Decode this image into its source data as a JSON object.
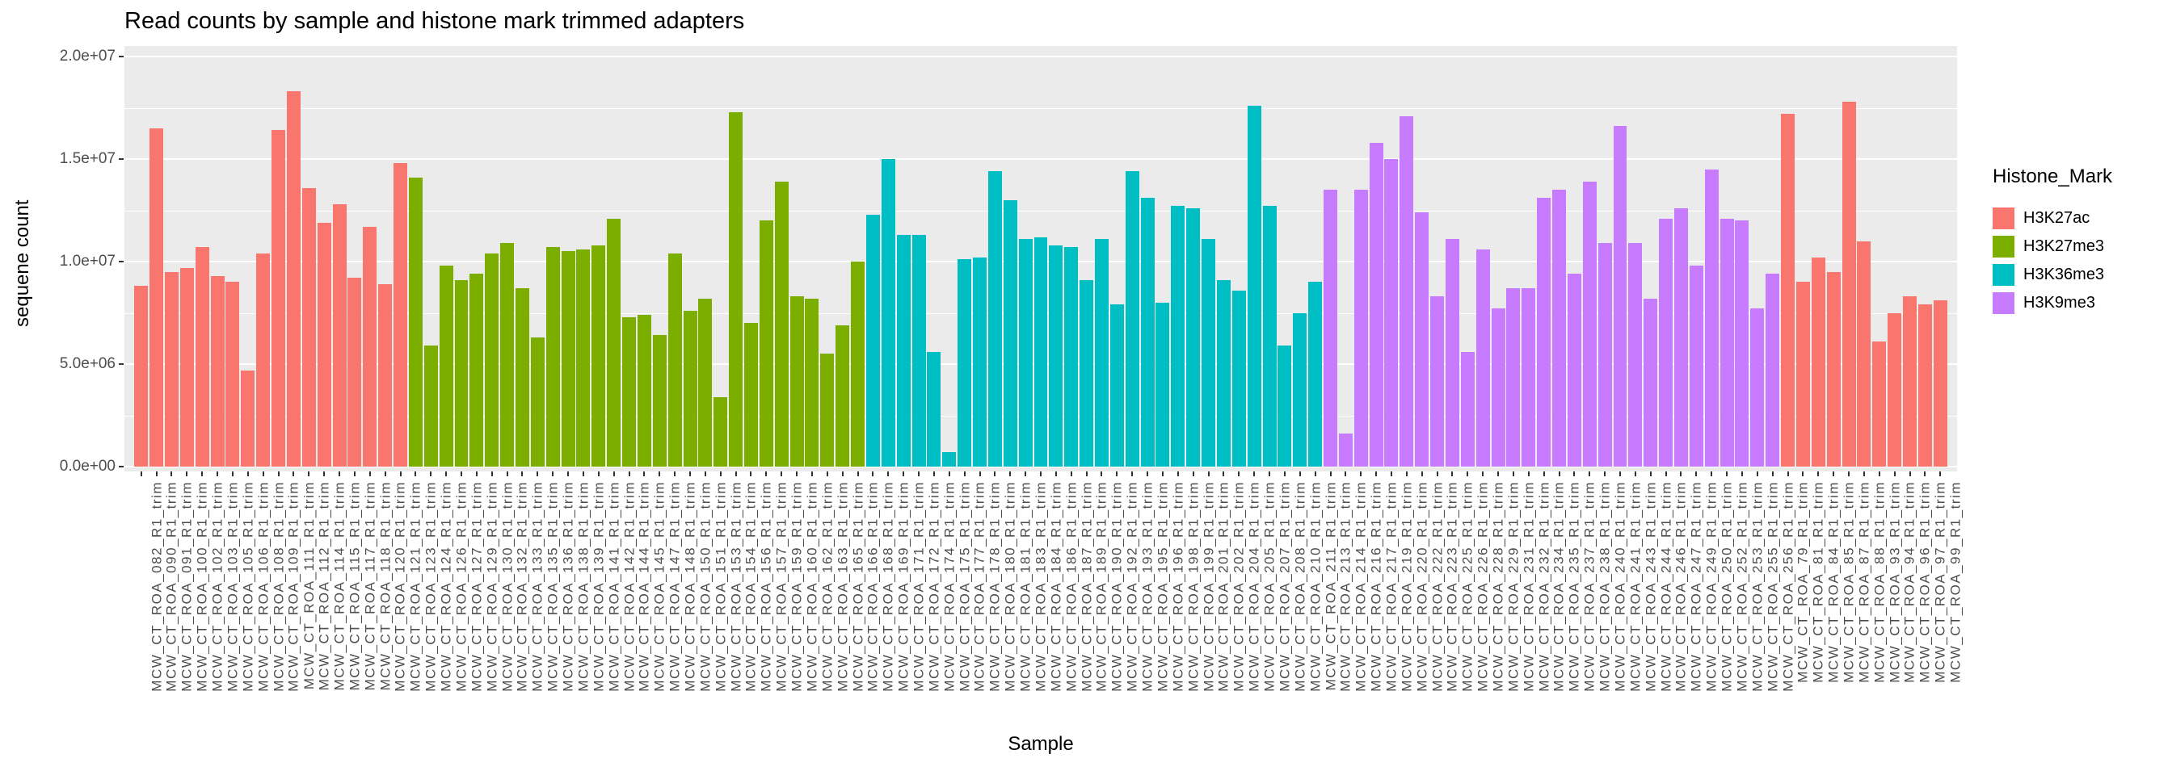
{
  "chart_data": {
    "type": "bar",
    "title": "Read counts by sample and histone mark trimmed adapters",
    "xlabel": "Sample",
    "ylabel": "sequene count",
    "ylim": [
      0,
      20000000
    ],
    "grid": true,
    "panel_bg": "#EBEBEB",
    "yticks": {
      "values": [
        0,
        5000000,
        10000000,
        15000000,
        20000000
      ],
      "labels": [
        "0.0e+00",
        "5.0e+06",
        "1.0e+07",
        "1.5e+07",
        "2.0e+07"
      ],
      "minor": [
        2500000,
        7500000,
        12500000,
        17500000
      ]
    },
    "legend": {
      "title": "Histone_Mark",
      "position": "right",
      "entries": [
        {
          "label": "H3K27ac",
          "color": "#F8766D"
        },
        {
          "label": "H3K27me3",
          "color": "#7CAE00"
        },
        {
          "label": "H3K36me3",
          "color": "#00BFC4"
        },
        {
          "label": "H3K9me3",
          "color": "#C77CFF"
        }
      ]
    },
    "bars": [
      {
        "sample": "MCW_CT_ROA_082_R1_trim",
        "mark": "H3K27ac",
        "value": 8800000
      },
      {
        "sample": "MCW_CT_ROA_090_R1_trim",
        "mark": "H3K27ac",
        "value": 16500000
      },
      {
        "sample": "MCW_CT_ROA_091_R1_trim",
        "mark": "H3K27ac",
        "value": 9500000
      },
      {
        "sample": "MCW_CT_ROA_100_R1_trim",
        "mark": "H3K27ac",
        "value": 9700000
      },
      {
        "sample": "MCW_CT_ROA_102_R1_trim",
        "mark": "H3K27ac",
        "value": 10700000
      },
      {
        "sample": "MCW_CT_ROA_103_R1_trim",
        "mark": "H3K27ac",
        "value": 9300000
      },
      {
        "sample": "MCW_CT_ROA_105_R1_trim",
        "mark": "H3K27ac",
        "value": 9000000
      },
      {
        "sample": "MCW_CT_ROA_106_R1_trim",
        "mark": "H3K27ac",
        "value": 4700000
      },
      {
        "sample": "MCW_CT_ROA_108_R1_trim",
        "mark": "H3K27ac",
        "value": 10400000
      },
      {
        "sample": "MCW_CT_ROA_109_R1_trim",
        "mark": "H3K27ac",
        "value": 16400000
      },
      {
        "sample": "MCW_CT_ROA_111_R1_trim",
        "mark": "H3K27ac",
        "value": 18300000
      },
      {
        "sample": "MCW_CT_ROA_112_R1_trim",
        "mark": "H3K27ac",
        "value": 13600000
      },
      {
        "sample": "MCW_CT_ROA_114_R1_trim",
        "mark": "H3K27ac",
        "value": 11900000
      },
      {
        "sample": "MCW_CT_ROA_115_R1_trim",
        "mark": "H3K27ac",
        "value": 12800000
      },
      {
        "sample": "MCW_CT_ROA_117_R1_trim",
        "mark": "H3K27ac",
        "value": 9200000
      },
      {
        "sample": "MCW_CT_ROA_118_R1_trim",
        "mark": "H3K27ac",
        "value": 11700000
      },
      {
        "sample": "MCW_CT_ROA_120_R1_trim",
        "mark": "H3K27ac",
        "value": 8900000
      },
      {
        "sample": "MCW_CT_ROA_121_R1_trim",
        "mark": "H3K27ac",
        "value": 14800000
      },
      {
        "sample": "MCW_CT_ROA_123_R1_trim",
        "mark": "H3K27me3",
        "value": 14100000
      },
      {
        "sample": "MCW_CT_ROA_124_R1_trim",
        "mark": "H3K27me3",
        "value": 5900000
      },
      {
        "sample": "MCW_CT_ROA_126_R1_trim",
        "mark": "H3K27me3",
        "value": 9800000
      },
      {
        "sample": "MCW_CT_ROA_127_R1_trim",
        "mark": "H3K27me3",
        "value": 9100000
      },
      {
        "sample": "MCW_CT_ROA_129_R1_trim",
        "mark": "H3K27me3",
        "value": 9400000
      },
      {
        "sample": "MCW_CT_ROA_130_R1_trim",
        "mark": "H3K27me3",
        "value": 10400000
      },
      {
        "sample": "MCW_CT_ROA_132_R1_trim",
        "mark": "H3K27me3",
        "value": 10900000
      },
      {
        "sample": "MCW_CT_ROA_133_R1_trim",
        "mark": "H3K27me3",
        "value": 8700000
      },
      {
        "sample": "MCW_CT_ROA_135_R1_trim",
        "mark": "H3K27me3",
        "value": 6300000
      },
      {
        "sample": "MCW_CT_ROA_136_R1_trim",
        "mark": "H3K27me3",
        "value": 10700000
      },
      {
        "sample": "MCW_CT_ROA_138_R1_trim",
        "mark": "H3K27me3",
        "value": 10500000
      },
      {
        "sample": "MCW_CT_ROA_139_R1_trim",
        "mark": "H3K27me3",
        "value": 10600000
      },
      {
        "sample": "MCW_CT_ROA_141_R1_trim",
        "mark": "H3K27me3",
        "value": 10800000
      },
      {
        "sample": "MCW_CT_ROA_142_R1_trim",
        "mark": "H3K27me3",
        "value": 12100000
      },
      {
        "sample": "MCW_CT_ROA_144_R1_trim",
        "mark": "H3K27me3",
        "value": 7300000
      },
      {
        "sample": "MCW_CT_ROA_145_R1_trim",
        "mark": "H3K27me3",
        "value": 7400000
      },
      {
        "sample": "MCW_CT_ROA_147_R1_trim",
        "mark": "H3K27me3",
        "value": 6400000
      },
      {
        "sample": "MCW_CT_ROA_148_R1_trim",
        "mark": "H3K27me3",
        "value": 10400000
      },
      {
        "sample": "MCW_CT_ROA_150_R1_trim",
        "mark": "H3K27me3",
        "value": 7600000
      },
      {
        "sample": "MCW_CT_ROA_151_R1_trim",
        "mark": "H3K27me3",
        "value": 8200000
      },
      {
        "sample": "MCW_CT_ROA_153_R1_trim",
        "mark": "H3K27me3",
        "value": 3400000
      },
      {
        "sample": "MCW_CT_ROA_154_R1_trim",
        "mark": "H3K27me3",
        "value": 17300000
      },
      {
        "sample": "MCW_CT_ROA_156_R1_trim",
        "mark": "H3K27me3",
        "value": 7000000
      },
      {
        "sample": "MCW_CT_ROA_157_R1_trim",
        "mark": "H3K27me3",
        "value": 12000000
      },
      {
        "sample": "MCW_CT_ROA_159_R1_trim",
        "mark": "H3K27me3",
        "value": 13900000
      },
      {
        "sample": "MCW_CT_ROA_160_R1_trim",
        "mark": "H3K27me3",
        "value": 8300000
      },
      {
        "sample": "MCW_CT_ROA_162_R1_trim",
        "mark": "H3K27me3",
        "value": 8200000
      },
      {
        "sample": "MCW_CT_ROA_163_R1_trim",
        "mark": "H3K27me3",
        "value": 5500000
      },
      {
        "sample": "MCW_CT_ROA_165_R1_trim",
        "mark": "H3K27me3",
        "value": 6900000
      },
      {
        "sample": "MCW_CT_ROA_166_R1_trim",
        "mark": "H3K27me3",
        "value": 10000000
      },
      {
        "sample": "MCW_CT_ROA_168_R1_trim",
        "mark": "H3K36me3",
        "value": 12300000
      },
      {
        "sample": "MCW_CT_ROA_169_R1_trim",
        "mark": "H3K36me3",
        "value": 15000000
      },
      {
        "sample": "MCW_CT_ROA_171_R1_trim",
        "mark": "H3K36me3",
        "value": 11300000
      },
      {
        "sample": "MCW_CT_ROA_172_R1_trim",
        "mark": "H3K36me3",
        "value": 11300000
      },
      {
        "sample": "MCW_CT_ROA_174_R1_trim",
        "mark": "H3K36me3",
        "value": 5600000
      },
      {
        "sample": "MCW_CT_ROA_175_R1_trim",
        "mark": "H3K36me3",
        "value": 700000
      },
      {
        "sample": "MCW_CT_ROA_177_R1_trim",
        "mark": "H3K36me3",
        "value": 10100000
      },
      {
        "sample": "MCW_CT_ROA_178_R1_trim",
        "mark": "H3K36me3",
        "value": 10200000
      },
      {
        "sample": "MCW_CT_ROA_180_R1_trim",
        "mark": "H3K36me3",
        "value": 14400000
      },
      {
        "sample": "MCW_CT_ROA_181_R1_trim",
        "mark": "H3K36me3",
        "value": 13000000
      },
      {
        "sample": "MCW_CT_ROA_183_R1_trim",
        "mark": "H3K36me3",
        "value": 11100000
      },
      {
        "sample": "MCW_CT_ROA_184_R1_trim",
        "mark": "H3K36me3",
        "value": 11200000
      },
      {
        "sample": "MCW_CT_ROA_186_R1_trim",
        "mark": "H3K36me3",
        "value": 10800000
      },
      {
        "sample": "MCW_CT_ROA_187_R1_trim",
        "mark": "H3K36me3",
        "value": 10700000
      },
      {
        "sample": "MCW_CT_ROA_189_R1_trim",
        "mark": "H3K36me3",
        "value": 9100000
      },
      {
        "sample": "MCW_CT_ROA_190_R1_trim",
        "mark": "H3K36me3",
        "value": 11100000
      },
      {
        "sample": "MCW_CT_ROA_192_R1_trim",
        "mark": "H3K36me3",
        "value": 7900000
      },
      {
        "sample": "MCW_CT_ROA_193_R1_trim",
        "mark": "H3K36me3",
        "value": 14400000
      },
      {
        "sample": "MCW_CT_ROA_195_R1_trim",
        "mark": "H3K36me3",
        "value": 13100000
      },
      {
        "sample": "MCW_CT_ROA_196_R1_trim",
        "mark": "H3K36me3",
        "value": 8000000
      },
      {
        "sample": "MCW_CT_ROA_198_R1_trim",
        "mark": "H3K36me3",
        "value": 12700000
      },
      {
        "sample": "MCW_CT_ROA_199_R1_trim",
        "mark": "H3K36me3",
        "value": 12600000
      },
      {
        "sample": "MCW_CT_ROA_201_R1_trim",
        "mark": "H3K36me3",
        "value": 11100000
      },
      {
        "sample": "MCW_CT_ROA_202_R1_trim",
        "mark": "H3K36me3",
        "value": 9100000
      },
      {
        "sample": "MCW_CT_ROA_204_R1_trim",
        "mark": "H3K36me3",
        "value": 8600000
      },
      {
        "sample": "MCW_CT_ROA_205_R1_trim",
        "mark": "H3K36me3",
        "value": 17600000
      },
      {
        "sample": "MCW_CT_ROA_207_R1_trim",
        "mark": "H3K36me3",
        "value": 12700000
      },
      {
        "sample": "MCW_CT_ROA_208_R1_trim",
        "mark": "H3K36me3",
        "value": 5900000
      },
      {
        "sample": "MCW_CT_ROA_210_R1_trim",
        "mark": "H3K36me3",
        "value": 7500000
      },
      {
        "sample": "MCW_CT_ROA_211_R1_trim",
        "mark": "H3K36me3",
        "value": 9000000
      },
      {
        "sample": "MCW_CT_ROA_213_R1_trim",
        "mark": "H3K9me3",
        "value": 13500000
      },
      {
        "sample": "MCW_CT_ROA_214_R1_trim",
        "mark": "H3K9me3",
        "value": 1600000
      },
      {
        "sample": "MCW_CT_ROA_216_R1_trim",
        "mark": "H3K9me3",
        "value": 13500000
      },
      {
        "sample": "MCW_CT_ROA_217_R1_trim",
        "mark": "H3K9me3",
        "value": 15800000
      },
      {
        "sample": "MCW_CT_ROA_219_R1_trim",
        "mark": "H3K9me3",
        "value": 15000000
      },
      {
        "sample": "MCW_CT_ROA_220_R1_trim",
        "mark": "H3K9me3",
        "value": 17100000
      },
      {
        "sample": "MCW_CT_ROA_222_R1_trim",
        "mark": "H3K9me3",
        "value": 12400000
      },
      {
        "sample": "MCW_CT_ROA_223_R1_trim",
        "mark": "H3K9me3",
        "value": 8300000
      },
      {
        "sample": "MCW_CT_ROA_225_R1_trim",
        "mark": "H3K9me3",
        "value": 11100000
      },
      {
        "sample": "MCW_CT_ROA_226_R1_trim",
        "mark": "H3K9me3",
        "value": 5600000
      },
      {
        "sample": "MCW_CT_ROA_228_R1_trim",
        "mark": "H3K9me3",
        "value": 10600000
      },
      {
        "sample": "MCW_CT_ROA_229_R1_trim",
        "mark": "H3K9me3",
        "value": 7700000
      },
      {
        "sample": "MCW_CT_ROA_231_R1_trim",
        "mark": "H3K9me3",
        "value": 8700000
      },
      {
        "sample": "MCW_CT_ROA_232_R1_trim",
        "mark": "H3K9me3",
        "value": 8700000
      },
      {
        "sample": "MCW_CT_ROA_234_R1_trim",
        "mark": "H3K9me3",
        "value": 13100000
      },
      {
        "sample": "MCW_CT_ROA_235_R1_trim",
        "mark": "H3K9me3",
        "value": 13500000
      },
      {
        "sample": "MCW_CT_ROA_237_R1_trim",
        "mark": "H3K9me3",
        "value": 9400000
      },
      {
        "sample": "MCW_CT_ROA_238_R1_trim",
        "mark": "H3K9me3",
        "value": 13900000
      },
      {
        "sample": "MCW_CT_ROA_240_R1_trim",
        "mark": "H3K9me3",
        "value": 10900000
      },
      {
        "sample": "MCW_CT_ROA_241_R1_trim",
        "mark": "H3K9me3",
        "value": 16600000
      },
      {
        "sample": "MCW_CT_ROA_243_R1_trim",
        "mark": "H3K9me3",
        "value": 10900000
      },
      {
        "sample": "MCW_CT_ROA_244_R1_trim",
        "mark": "H3K9me3",
        "value": 8200000
      },
      {
        "sample": "MCW_CT_ROA_246_R1_trim",
        "mark": "H3K9me3",
        "value": 12100000
      },
      {
        "sample": "MCW_CT_ROA_247_R1_trim",
        "mark": "H3K9me3",
        "value": 12600000
      },
      {
        "sample": "MCW_CT_ROA_249_R1_trim",
        "mark": "H3K9me3",
        "value": 9800000
      },
      {
        "sample": "MCW_CT_ROA_250_R1_trim",
        "mark": "H3K9me3",
        "value": 14500000
      },
      {
        "sample": "MCW_CT_ROA_252_R1_trim",
        "mark": "H3K9me3",
        "value": 12100000
      },
      {
        "sample": "MCW_CT_ROA_253_R1_trim",
        "mark": "H3K9me3",
        "value": 12000000
      },
      {
        "sample": "MCW_CT_ROA_255_R1_trim",
        "mark": "H3K9me3",
        "value": 7700000
      },
      {
        "sample": "MCW_CT_ROA_256_R1_trim",
        "mark": "H3K9me3",
        "value": 9400000
      },
      {
        "sample": "MCW_CT_ROA_79_R1_trim",
        "mark": "H3K27ac",
        "value": 17200000
      },
      {
        "sample": "MCW_CT_ROA_81_R1_trim",
        "mark": "H3K27ac",
        "value": 9000000
      },
      {
        "sample": "MCW_CT_ROA_84_R1_trim",
        "mark": "H3K27ac",
        "value": 10200000
      },
      {
        "sample": "MCW_CT_ROA_85_R1_trim",
        "mark": "H3K27ac",
        "value": 9500000
      },
      {
        "sample": "MCW_CT_ROA_87_R1_trim",
        "mark": "H3K27ac",
        "value": 17800000
      },
      {
        "sample": "MCW_CT_ROA_88_R1_trim",
        "mark": "H3K27ac",
        "value": 11000000
      },
      {
        "sample": "MCW_CT_ROA_93_R1_trim",
        "mark": "H3K27ac",
        "value": 6100000
      },
      {
        "sample": "MCW_CT_ROA_94_R1_trim",
        "mark": "H3K27ac",
        "value": 7500000
      },
      {
        "sample": "MCW_CT_ROA_96_R1_trim",
        "mark": "H3K27ac",
        "value": 8300000
      },
      {
        "sample": "MCW_CT_ROA_97_R1_trim",
        "mark": "H3K27ac",
        "value": 7900000
      },
      {
        "sample": "MCW_CT_ROA_99_R1_trim",
        "mark": "H3K27ac",
        "value": 8100000
      }
    ]
  }
}
